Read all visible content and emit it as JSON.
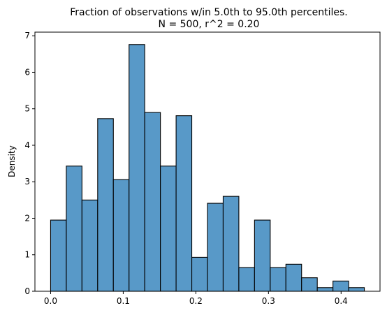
{
  "chart_data": {
    "type": "bar",
    "title": "Fraction of observations w/in 5.0th to 95.0th percentiles.",
    "subtitle": "N = 500, r^2 = 0.20",
    "xlabel": "",
    "ylabel": "Density",
    "xlim": [
      -0.0216,
      0.4536
    ],
    "ylim": [
      0,
      7.1
    ],
    "grid": false,
    "legend": "none",
    "bar_color": "#5899c8",
    "x_ticks": [
      "0.0",
      "0.1",
      "0.2",
      "0.3",
      "0.4"
    ],
    "x_tick_values": [
      0.0,
      0.1,
      0.2,
      0.3,
      0.4
    ],
    "y_ticks": [
      "0",
      "1",
      "2",
      "3",
      "4",
      "5",
      "6",
      "7"
    ],
    "y_tick_values": [
      0,
      1,
      2,
      3,
      4,
      5,
      6,
      7
    ],
    "bin_edges": [
      0.0,
      0.0216,
      0.0432,
      0.0648,
      0.0864,
      0.108,
      0.1296,
      0.1512,
      0.1728,
      0.1944,
      0.216,
      0.2376,
      0.2592,
      0.2808,
      0.3024,
      0.324,
      0.3456,
      0.3672,
      0.3888,
      0.4104,
      0.432
    ],
    "values": [
      1.95,
      3.43,
      2.5,
      4.73,
      3.06,
      6.76,
      4.9,
      3.43,
      4.81,
      0.93,
      2.41,
      2.6,
      0.65,
      1.95,
      0.65,
      0.74,
      0.37,
      0.1,
      0.28,
      0.1
    ]
  }
}
